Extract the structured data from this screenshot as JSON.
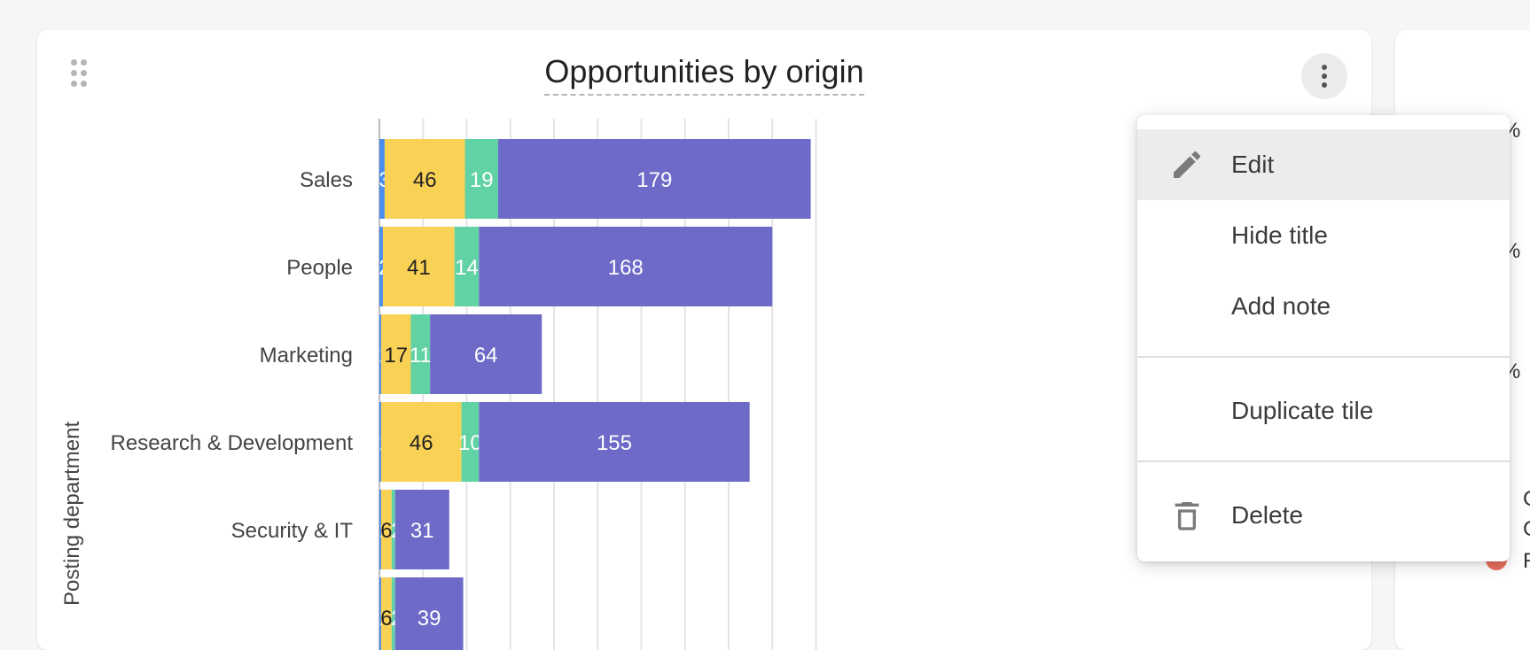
{
  "tile": {
    "title": "Opportunities by origin"
  },
  "menu": {
    "items": [
      {
        "label": "Edit",
        "icon": "pencil-icon"
      },
      {
        "label": "Hide title"
      },
      {
        "label": "Add note"
      },
      {
        "label": "Duplicate tile"
      },
      {
        "label": "Delete",
        "icon": "trash-icon"
      }
    ]
  },
  "colors": {
    "series_blue": "#4a8ded",
    "series_yellow": "#f9d155",
    "series_green": "#61d2a4",
    "series_purple": "#6d6ac8"
  },
  "chart_data": {
    "type": "bar",
    "orientation": "horizontal",
    "stacked": true,
    "title": "Opportunities by origin",
    "ylabel": "Posting department",
    "categories": [
      "Sales",
      "People",
      "Marketing",
      "Research & Development",
      "Security & IT",
      ""
    ],
    "series": [
      {
        "color": "#4a8ded",
        "values": [
          3,
          2,
          1,
          1,
          1,
          1
        ]
      },
      {
        "color": "#f9d155",
        "values": [
          46,
          41,
          17,
          46,
          6,
          6
        ]
      },
      {
        "color": "#61d2a4",
        "values": [
          19,
          14,
          11,
          10,
          2,
          2
        ]
      },
      {
        "color": "#6d6ac8",
        "values": [
          179,
          168,
          64,
          155,
          31,
          39
        ]
      }
    ],
    "xlim": [
      0,
      250
    ],
    "grid": true
  }
}
